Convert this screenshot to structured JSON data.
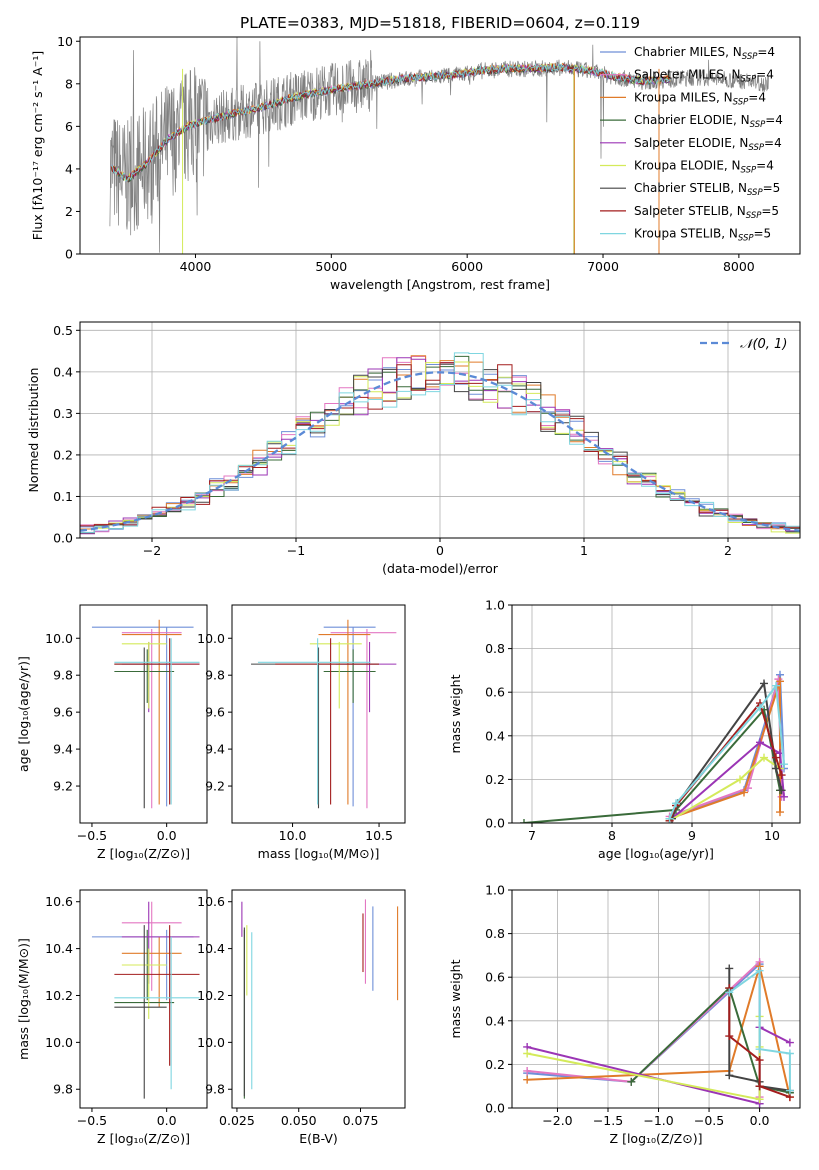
{
  "figure_title": "PLATE=0383, MJD=51818, FIBERID=0604, z=0.119",
  "colors": {
    "Chabrier MILES": "#6f8fd8",
    "Salpeter MILES": "#e377c2",
    "Kroupa MILES": "#e07b2a",
    "Chabrier ELODIE": "#3a6b3a",
    "Salpeter ELODIE": "#9b35b5",
    "Kroupa ELODIE": "#d4ea5a",
    "Chabrier STELIB": "#444444",
    "Salpeter STELIB": "#a31d1d",
    "Kroupa STELIB": "#7fd6e0",
    "data": "#808080",
    "gaussian": "#5b8ad6"
  },
  "chart_data": [
    {
      "type": "line",
      "panel": "spectrum",
      "title": "PLATE=0383, MJD=51818, FIBERID=0604, z=0.119",
      "xlabel": "wavelength [Angstrom, rest frame]",
      "ylabel": "Flux [fλ10⁻¹⁷ erg cm⁻² s⁻¹ A⁻¹]",
      "xlim": [
        3150,
        8450
      ],
      "ylim": [
        0,
        10.2
      ],
      "xticks": [
        4000,
        5000,
        6000,
        7000,
        8000
      ],
      "yticks": [
        0,
        2,
        4,
        6,
        8,
        10
      ],
      "grid": false,
      "legend": [
        "Chabrier MILES, N_SSP=4",
        "Salpeter MILES, N_SSP=4",
        "Kroupa MILES, N_SSP=4",
        "Chabrier ELODIE, N_SSP=4",
        "Salpeter ELODIE, N_SSP=4",
        "Kroupa ELODIE, N_SSP=4",
        "Chabrier STELIB, N_SSP=5",
        "Salpeter STELIB, N_SSP=5",
        "Kroupa STELIB, N_SSP=5"
      ],
      "legend_placement": "right",
      "continuum": {
        "x": [
          3370,
          3500,
          3650,
          3800,
          3950,
          4100,
          4300,
          4500,
          4700,
          4900,
          5100,
          5300,
          5500,
          5700,
          5900,
          6100,
          6300,
          6500,
          6700,
          6900,
          7100,
          7300,
          7500,
          7700,
          7900,
          8100,
          8220
        ],
        "y": [
          4.1,
          3.5,
          4.3,
          5.4,
          6.0,
          6.3,
          6.6,
          6.9,
          7.3,
          7.6,
          7.8,
          8.0,
          8.2,
          8.3,
          8.4,
          8.6,
          8.7,
          8.7,
          8.75,
          8.6,
          8.3,
          8.1,
          8.2,
          8.3,
          8.2,
          8.1,
          8.0
        ]
      }
    },
    {
      "type": "line",
      "panel": "residuals",
      "xlabel": "(data-model)/error",
      "ylabel": "Normed distribution",
      "xlim": [
        -2.5,
        2.5
      ],
      "ylim": [
        0,
        0.52
      ],
      "xticks": [
        -2,
        -1,
        0,
        1,
        2
      ],
      "yticks": [
        0.0,
        0.1,
        0.2,
        0.3,
        0.4,
        0.5
      ],
      "grid": true,
      "legend": [
        "𝒩(0, 1)"
      ],
      "legend_placement": "top-right",
      "bin_width": 0.1
    },
    {
      "type": "scatter",
      "panel": "age-vs-Z",
      "xlabel": "Z [log₁₀(Z/Z⊙)]",
      "ylabel": "age  [log₁₀(age/yr)]",
      "xlim": [
        -0.58,
        0.27
      ],
      "ylim": [
        9.0,
        10.18
      ],
      "xticks": [
        -0.5,
        0.0
      ],
      "yticks": [
        9.2,
        9.4,
        9.6,
        9.8,
        10.0
      ],
      "grid": false
    },
    {
      "type": "scatter",
      "panel": "age-vs-mass",
      "xlabel": "mass [log₁₀(M/M⊙)]",
      "xlim": [
        9.65,
        10.65
      ],
      "ylim": [
        9.0,
        10.18
      ],
      "xticks": [
        10.0,
        10.5
      ],
      "yticks": [
        9.2,
        9.4,
        9.6,
        9.8,
        10.0
      ],
      "grid": false
    },
    {
      "type": "line",
      "panel": "weight-vs-age",
      "xlabel": "age  [log₁₀(age/yr)]",
      "ylabel": "mass weight",
      "xlim": [
        6.75,
        10.35
      ],
      "ylim": [
        0,
        1.0
      ],
      "xticks": [
        7,
        8,
        9,
        10
      ],
      "yticks": [
        0.0,
        0.2,
        0.4,
        0.6,
        0.8,
        1.0
      ],
      "grid": true
    },
    {
      "type": "scatter",
      "panel": "mass-vs-Z",
      "xlabel": "Z [log₁₀(Z/Z⊙)]",
      "ylabel": "mass [log₁₀(M/M⊙)]",
      "xlim": [
        -0.58,
        0.27
      ],
      "ylim": [
        9.72,
        10.65
      ],
      "xticks": [
        -0.5,
        0.0
      ],
      "yticks": [
        9.8,
        10.0,
        10.2,
        10.4,
        10.6
      ],
      "grid": false
    },
    {
      "type": "scatter",
      "panel": "mass-vs-ebv",
      "xlabel": "E(B-V)",
      "xlim": [
        0.023,
        0.093
      ],
      "ylim": [
        9.72,
        10.65
      ],
      "xticks": [
        0.025,
        0.05,
        0.075
      ],
      "yticks": [
        9.8,
        10.0,
        10.2,
        10.4,
        10.6
      ],
      "grid": false
    },
    {
      "type": "line",
      "panel": "weight-vs-Z",
      "xlabel": "Z [log₁₀(Z/Z⊙)]",
      "ylabel": "mass weight",
      "xlim": [
        -2.45,
        0.4
      ],
      "ylim": [
        0,
        1.0
      ],
      "xticks": [
        -2.0,
        -1.5,
        -1.0,
        -0.5,
        0.0
      ],
      "yticks": [
        0.0,
        0.2,
        0.4,
        0.6,
        0.8,
        1.0
      ],
      "grid": true
    }
  ],
  "models": [
    {
      "name": "Chabrier MILES",
      "n": 4,
      "Z": [
        -0.5,
        0.18
      ],
      "Zc": 0.0,
      "age": [
        9.09,
        10.06
      ],
      "agec": 10.06,
      "mass": [
        10.18,
        10.48
      ],
      "massc": 10.45,
      "ebv": [
        10.22,
        10.58
      ],
      "ebvx": 0.08,
      "wa": [
        [
          8.72,
          0.02
        ],
        [
          9.65,
          0.15
        ],
        [
          10.1,
          0.68
        ],
        [
          10.15,
          0.25
        ]
      ],
      "wz": [
        [
          -2.3,
          0.16
        ],
        [
          -1.27,
          0.12
        ],
        [
          0.0,
          0.66
        ],
        [
          0.0,
          0.02
        ]
      ]
    },
    {
      "name": "Salpeter MILES",
      "n": 4,
      "Z": [
        -0.3,
        0.1
      ],
      "Zc": -0.1,
      "age": [
        9.08,
        10.05
      ],
      "agec": 10.03,
      "mass": [
        10.22,
        10.6
      ],
      "massc": 10.51,
      "ebv": [
        10.25,
        10.61
      ],
      "ebvx": 0.077,
      "wa": [
        [
          8.72,
          0.03
        ],
        [
          9.7,
          0.16
        ],
        [
          10.08,
          0.66
        ],
        [
          10.12,
          0.12
        ]
      ],
      "wz": [
        [
          -2.3,
          0.17
        ],
        [
          -1.27,
          0.12
        ],
        [
          0.0,
          0.67
        ],
        [
          0.0,
          0.05
        ]
      ]
    },
    {
      "name": "Kroupa MILES",
      "n": 4,
      "Z": [
        -0.3,
        0.1
      ],
      "Zc": -0.05,
      "age": [
        9.1,
        10.1
      ],
      "agec": 10.02,
      "mass": [
        10.15,
        10.45
      ],
      "massc": 10.38,
      "ebv": [
        10.18,
        10.58
      ],
      "ebvx": 0.09,
      "wa": [
        [
          8.72,
          0.02
        ],
        [
          9.65,
          0.14
        ],
        [
          10.1,
          0.65
        ],
        [
          10.1,
          0.05
        ]
      ],
      "wz": [
        [
          -2.3,
          0.13
        ],
        [
          -0.3,
          0.17
        ],
        [
          0.0,
          0.65
        ],
        [
          0.3,
          0.05
        ]
      ]
    },
    {
      "name": "Chabrier ELODIE",
      "n": 4,
      "Z": [
        -0.35,
        0.05
      ],
      "Zc": -0.13,
      "age": [
        9.65,
        9.94
      ],
      "agec": 9.82,
      "mass": [
        10.18,
        10.48
      ],
      "massc": 10.17,
      "ebv": [
        9.76,
        10.48
      ],
      "ebvx": 0.028,
      "wa": [
        [
          6.9,
          0.0
        ],
        [
          8.8,
          0.06
        ],
        [
          9.9,
          0.52
        ],
        [
          10.1,
          0.15
        ]
      ],
      "wz": [
        [
          -1.27,
          0.12
        ],
        [
          -0.3,
          0.55
        ],
        [
          0.0,
          0.1
        ],
        [
          0.3,
          0.07
        ]
      ]
    },
    {
      "name": "Salpeter ELODIE",
      "n": 4,
      "Z": [
        -0.3,
        0.22
      ],
      "Zc": -0.12,
      "age": [
        9.6,
        9.98
      ],
      "agec": 9.86,
      "mass": [
        10.25,
        10.6
      ],
      "massc": 10.45,
      "ebv": [
        10.45,
        10.6
      ],
      "ebvx": 0.027,
      "wa": [
        [
          8.72,
          0.01
        ],
        [
          9.85,
          0.37
        ],
        [
          10.1,
          0.32
        ],
        [
          10.15,
          0.12
        ]
      ],
      "wz": [
        [
          -2.3,
          0.28
        ],
        [
          -0.0,
          0.02
        ],
        [
          0.0,
          0.37
        ],
        [
          0.3,
          0.3
        ]
      ]
    },
    {
      "name": "Kroupa ELODIE",
      "n": 4,
      "Z": [
        -0.3,
        0.0
      ],
      "Zc": -0.12,
      "age": [
        9.62,
        9.98
      ],
      "agec": 9.97,
      "mass": [
        10.1,
        10.4
      ],
      "massc": 10.33,
      "ebv": [
        10.2,
        10.5
      ],
      "ebvx": 0.029,
      "wa": [
        [
          8.72,
          0.01
        ],
        [
          9.6,
          0.2
        ],
        [
          9.9,
          0.3
        ],
        [
          10.1,
          0.25
        ]
      ],
      "wz": [
        [
          -2.3,
          0.25
        ],
        [
          -0.0,
          0.04
        ],
        [
          0.0,
          0.42
        ],
        [
          0.0,
          0.28
        ]
      ]
    },
    {
      "name": "Chabrier STELIB",
      "n": 5,
      "Z": [
        -0.35,
        0.0
      ],
      "Zc": -0.15,
      "age": [
        9.08,
        9.95
      ],
      "agec": 9.86,
      "mass": [
        9.76,
        10.5
      ],
      "massc": 10.15,
      "ebv": [
        9.77,
        10.49
      ],
      "ebvx": 0.028,
      "wa": [
        [
          8.75,
          0.02
        ],
        [
          8.82,
          0.09
        ],
        [
          9.9,
          0.64
        ],
        [
          10.05,
          0.25
        ],
        [
          10.12,
          0.15
        ]
      ],
      "wz": [
        [
          -0.3,
          0.64
        ],
        [
          -0.3,
          0.15
        ],
        [
          0.0,
          0.12
        ],
        [
          0.0,
          0.1
        ],
        [
          0.3,
          0.08
        ]
      ]
    },
    {
      "name": "Salpeter STELIB",
      "n": 5,
      "Z": [
        -0.35,
        0.22
      ],
      "Zc": 0.02,
      "age": [
        9.1,
        10.0
      ],
      "agec": 9.86,
      "mass": [
        9.9,
        10.5
      ],
      "massc": 10.29,
      "ebv": [
        10.3,
        10.55
      ],
      "ebvx": 0.076,
      "wa": [
        [
          8.72,
          0.01
        ],
        [
          8.8,
          0.08
        ],
        [
          9.85,
          0.55
        ],
        [
          10.05,
          0.3
        ],
        [
          10.12,
          0.22
        ]
      ],
      "wz": [
        [
          -0.3,
          0.55
        ],
        [
          -0.3,
          0.33
        ],
        [
          0.0,
          0.22
        ],
        [
          0.0,
          0.1
        ],
        [
          0.3,
          0.05
        ]
      ]
    },
    {
      "name": "Kroupa STELIB",
      "n": 5,
      "Z": [
        -0.35,
        0.22
      ],
      "Zc": 0.03,
      "age": [
        9.1,
        10.0
      ],
      "agec": 9.87,
      "mass": [
        9.8,
        10.45
      ],
      "massc": 10.19,
      "ebv": [
        9.8,
        10.47
      ],
      "ebvx": 0.031,
      "wa": [
        [
          8.72,
          0.02
        ],
        [
          8.8,
          0.09
        ],
        [
          9.85,
          0.53
        ],
        [
          10.05,
          0.63
        ],
        [
          10.15,
          0.27
        ]
      ],
      "wz": [
        [
          -0.3,
          0.53
        ],
        [
          0.0,
          0.63
        ],
        [
          0.0,
          0.27
        ],
        [
          0.3,
          0.25
        ],
        [
          0.3,
          0.08
        ]
      ]
    }
  ]
}
